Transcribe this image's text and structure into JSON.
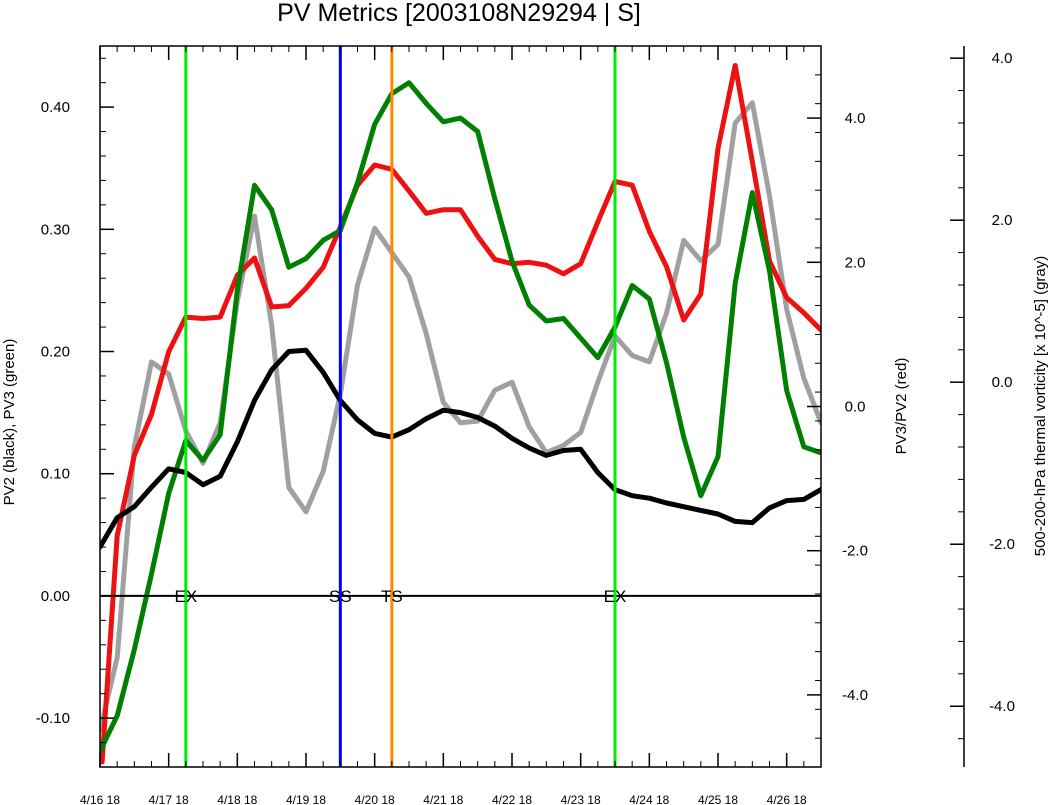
{
  "chart_data": {
    "type": "line",
    "title": "PV Metrics [2003108N29294 | S]",
    "x_axis": {
      "unit": "days since 4/16 18",
      "range": [
        0,
        10.5
      ],
      "tick_labels": [
        "4/16 18",
        "4/17 18",
        "4/18 18",
        "4/19 18",
        "4/20 18",
        "4/21 18",
        "4/22 18",
        "4/23 18",
        "4/24 18",
        "4/25 18",
        "4/26 18"
      ],
      "tick_values": [
        0,
        1,
        2,
        3,
        4,
        5,
        6,
        7,
        8,
        9,
        10
      ],
      "minor_step": 0.25
    },
    "left_axis": {
      "label": "PV2 (black), PV3 (green)",
      "range": [
        -0.14,
        0.45
      ],
      "ticks": [
        -0.1,
        0.0,
        0.1,
        0.2,
        0.3,
        0.4
      ],
      "tick_labels": [
        "-0.10",
        "0.00",
        "0.10",
        "0.20",
        "0.30",
        "0.40"
      ],
      "minor_step": 0.02
    },
    "right_axis": {
      "label": "PV3/PV2 (red)",
      "range": [
        -5.0,
        5.0
      ],
      "ticks": [
        -4,
        -2,
        0,
        2,
        4
      ],
      "tick_labels": [
        "-4.0",
        "-2.0",
        "0.0",
        "2.0",
        "4.0"
      ],
      "minor_step": 0.4
    },
    "far_right_axis": {
      "label": "500-200-hPa thermal vorticity [x 10^-5] (gray)",
      "range": [
        -4.75,
        4.15
      ],
      "ticks": [
        -4,
        -2,
        0,
        2,
        4
      ],
      "tick_labels": [
        "-4.0",
        "-2.0",
        "0.0",
        "2.0",
        "4.0"
      ],
      "minor_step": 0.4
    },
    "zero_line": 0.0,
    "events": [
      {
        "x": 1.25,
        "label": "EX",
        "color": "#00ee00"
      },
      {
        "x": 3.5,
        "label": "SS",
        "color": "#0000ff"
      },
      {
        "x": 4.25,
        "label": "TS",
        "color": "#ff8800"
      },
      {
        "x": 7.5,
        "label": "EX",
        "color": "#00ee00"
      }
    ],
    "series": [
      {
        "color": "#000000",
        "axis": "left",
        "x": [
          0,
          0.25,
          0.5,
          0.75,
          1.0,
          1.25,
          1.5,
          1.75,
          2.0,
          2.25,
          2.5,
          2.75,
          3.0,
          3.25,
          3.5,
          3.75,
          4.0,
          4.25,
          4.5,
          4.75,
          5.0,
          5.25,
          5.5,
          5.75,
          6.0,
          6.25,
          6.5,
          6.75,
          7.0,
          7.25,
          7.5,
          7.75,
          8.0,
          8.25,
          8.5,
          8.75,
          9.0,
          9.25,
          9.5,
          9.75,
          10.0,
          10.25,
          10.5
        ],
        "values": [
          0.04,
          0.064,
          0.073,
          0.089,
          0.104,
          0.101,
          0.091,
          0.098,
          0.126,
          0.16,
          0.185,
          0.2,
          0.201,
          0.183,
          0.16,
          0.144,
          0.133,
          0.13,
          0.136,
          0.145,
          0.152,
          0.15,
          0.146,
          0.139,
          0.129,
          0.121,
          0.115,
          0.119,
          0.12,
          0.101,
          0.087,
          0.082,
          0.08,
          0.076,
          0.073,
          0.07,
          0.067,
          0.061,
          0.06,
          0.072,
          0.078,
          0.079,
          0.087
        ]
      },
      {
        "color": "#008000",
        "axis": "left",
        "x": [
          0,
          0.25,
          0.5,
          0.75,
          1.0,
          1.25,
          1.5,
          1.75,
          2.0,
          2.25,
          2.5,
          2.75,
          3.0,
          3.25,
          3.5,
          3.75,
          4.0,
          4.25,
          4.5,
          4.75,
          5.0,
          5.25,
          5.5,
          5.75,
          6.0,
          6.25,
          6.5,
          6.75,
          7.0,
          7.25,
          7.5,
          7.75,
          8.0,
          8.25,
          8.5,
          8.75,
          9.0,
          9.25,
          9.5,
          9.75,
          10.0,
          10.25,
          10.5
        ],
        "values": [
          -0.127,
          -0.098,
          -0.044,
          0.018,
          0.084,
          0.127,
          0.111,
          0.132,
          0.25,
          0.336,
          0.316,
          0.269,
          0.276,
          0.291,
          0.299,
          0.338,
          0.386,
          0.411,
          0.42,
          0.403,
          0.388,
          0.391,
          0.38,
          0.325,
          0.274,
          0.238,
          0.225,
          0.227,
          0.211,
          0.195,
          0.22,
          0.254,
          0.243,
          0.191,
          0.13,
          0.082,
          0.114,
          0.256,
          0.33,
          0.266,
          0.168,
          0.122,
          0.117
        ]
      },
      {
        "color": "#ee1111",
        "axis": "right",
        "x": [
          0.03,
          0.25,
          0.5,
          0.75,
          1.0,
          1.25,
          1.5,
          1.75,
          2.0,
          2.25,
          2.5,
          2.75,
          3.0,
          3.25,
          3.5,
          3.75,
          4.0,
          4.25,
          4.5,
          4.75,
          5.0,
          5.25,
          5.5,
          5.75,
          6.0,
          6.25,
          6.5,
          6.75,
          7.0,
          7.25,
          7.5,
          7.75,
          8.0,
          8.25,
          8.5,
          8.75,
          9.0,
          9.25,
          9.5,
          9.75,
          10.0,
          10.25,
          10.5
        ],
        "values": [
          -4.93,
          -1.79,
          -0.68,
          -0.11,
          0.76,
          1.24,
          1.22,
          1.24,
          1.82,
          2.06,
          1.38,
          1.4,
          1.64,
          1.93,
          2.49,
          3.07,
          3.35,
          3.29,
          2.99,
          2.68,
          2.73,
          2.73,
          2.36,
          2.04,
          1.98,
          2.0,
          1.96,
          1.84,
          1.98,
          2.56,
          3.12,
          3.07,
          2.43,
          1.94,
          1.2,
          1.56,
          3.58,
          4.73,
          3.4,
          2.02,
          1.51,
          1.3,
          1.06
        ]
      },
      {
        "color": "#a0a0a0",
        "axis": "far_right",
        "x": [
          0,
          0.25,
          0.5,
          0.75,
          1.0,
          1.25,
          1.5,
          1.75,
          2.0,
          2.25,
          2.5,
          2.75,
          3.0,
          3.25,
          3.5,
          3.75,
          4.0,
          4.25,
          4.5,
          4.75,
          5.0,
          5.25,
          5.5,
          5.75,
          6.0,
          6.25,
          6.5,
          6.75,
          7.0,
          7.25,
          7.5,
          7.75,
          8.0,
          8.25,
          8.5,
          8.75,
          9.0,
          9.25,
          9.5,
          9.75,
          10.0,
          10.25,
          10.5
        ],
        "values": [
          -4.3,
          -3.4,
          -0.8,
          0.25,
          0.1,
          -0.6,
          -1.0,
          -0.5,
          1.0,
          2.05,
          0.7,
          -1.3,
          -1.6,
          -1.1,
          -0.15,
          1.2,
          1.9,
          1.6,
          1.3,
          0.6,
          -0.25,
          -0.5,
          -0.48,
          -0.1,
          0.0,
          -0.55,
          -0.87,
          -0.78,
          -0.62,
          0.0,
          0.57,
          0.33,
          0.25,
          0.85,
          1.75,
          1.5,
          1.7,
          3.2,
          3.45,
          2.3,
          0.9,
          0.05,
          -0.5
        ]
      }
    ]
  }
}
